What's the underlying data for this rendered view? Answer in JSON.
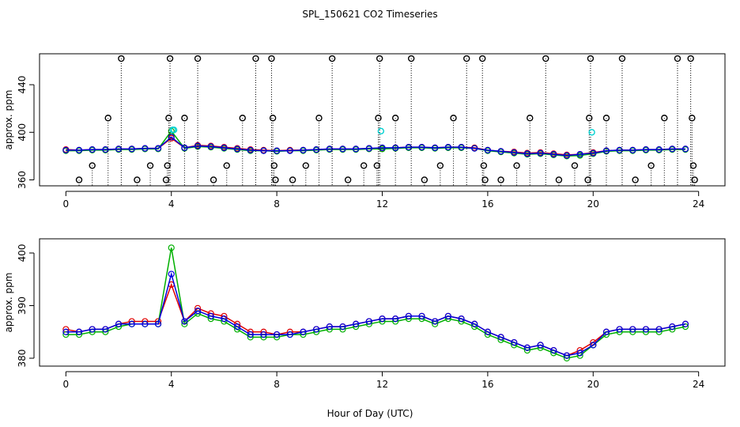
{
  "chart_data": [
    {
      "type": "line",
      "title": "SPL_150621  CO2 Timeseries",
      "ylabel": "approx. ppm",
      "xlim": [
        -1,
        25
      ],
      "xticks": [
        0,
        4,
        8,
        12,
        16,
        20,
        24
      ],
      "ylim": [
        355,
        466
      ],
      "yticks": [
        360,
        400,
        440
      ],
      "x": [
        0,
        0.5,
        1,
        1.5,
        2,
        2.5,
        3,
        3.5,
        4,
        4.5,
        5,
        5.5,
        6,
        6.5,
        7,
        7.5,
        8,
        8.5,
        9,
        9.5,
        10,
        10.5,
        11,
        11.5,
        12,
        12.5,
        13,
        13.5,
        14,
        14.5,
        15,
        15.5,
        16,
        16.5,
        17,
        17.5,
        18,
        18.5,
        19,
        19.5,
        20,
        20.5,
        21,
        21.5,
        22,
        22.5,
        23,
        23.5
      ],
      "series": [
        {
          "style": "line",
          "color": "#e00000",
          "values": [
            385.5,
            385,
            385.5,
            385.5,
            386,
            386,
            386.5,
            386.5,
            395,
            387,
            389,
            388.5,
            387.5,
            386.5,
            385.5,
            385,
            384.5,
            385,
            385,
            385.5,
            386,
            386,
            386,
            386.5,
            386.5,
            387,
            387.5,
            387.5,
            387,
            387.5,
            387.5,
            387,
            385,
            384,
            383.5,
            382.5,
            383,
            382,
            381,
            381.5,
            383,
            384.5,
            385,
            385,
            385.5,
            385.5,
            386,
            386
          ]
        },
        {
          "style": "line",
          "color": "#00b000",
          "values": [
            384.5,
            384.5,
            385,
            385,
            385.5,
            385.5,
            386,
            386,
            401,
            386.5,
            388,
            387.5,
            386.5,
            385.5,
            384.5,
            384.5,
            384,
            384.5,
            384.5,
            385,
            385.5,
            385.5,
            385.5,
            386,
            386,
            386.5,
            387,
            387,
            386.5,
            387,
            387,
            386.5,
            384.5,
            383.5,
            382.5,
            381.5,
            382,
            381,
            380,
            380.5,
            382,
            384,
            384.5,
            384.5,
            385,
            385,
            385.5,
            385.5
          ]
        },
        {
          "style": "line",
          "color": "#0000e0",
          "values": [
            385,
            385,
            385.5,
            385.5,
            386,
            386,
            386.5,
            386.5,
            396,
            387,
            388.5,
            388,
            387,
            386,
            385,
            384.5,
            384.5,
            384.5,
            385,
            385.5,
            386,
            386,
            386,
            386.5,
            387,
            387,
            387.5,
            387.5,
            387,
            387.5,
            387.5,
            386.5,
            385,
            384,
            383,
            382,
            382.5,
            381.5,
            380.5,
            381.5,
            382.5,
            384.5,
            385,
            385,
            385.5,
            385.5,
            386,
            386
          ]
        },
        {
          "style": "spike",
          "color": "#000000",
          "x": [
            0.5,
            1,
            1.6,
            2.1,
            2.7,
            3.2,
            3.8,
            3.85,
            3.9,
            3.95,
            4.5,
            5,
            5.6,
            6.1,
            6.7,
            7.2,
            7.8,
            7.85,
            7.9,
            7.95,
            8.6,
            9.1,
            9.6,
            10.1,
            10.7,
            11.3,
            11.8,
            11.85,
            11.9,
            12.5,
            13.1,
            13.6,
            14.2,
            14.7,
            15.2,
            15.8,
            15.85,
            15.9,
            16.5,
            17.1,
            17.6,
            18.2,
            18.7,
            19.3,
            19.8,
            19.85,
            19.9,
            20.5,
            21.1,
            21.6,
            22.2,
            22.7,
            23.2,
            23.7,
            23.75,
            23.8,
            23.85
          ],
          "values": [
            360,
            372,
            412,
            462,
            360,
            372,
            360,
            372,
            412,
            462,
            412,
            462,
            360,
            372,
            412,
            462,
            462,
            412,
            372,
            360,
            360,
            372,
            412,
            462,
            360,
            372,
            372,
            412,
            462,
            412,
            462,
            360,
            372,
            412,
            462,
            462,
            372,
            360,
            360,
            372,
            412,
            462,
            360,
            372,
            360,
            412,
            462,
            412,
            462,
            360,
            372,
            412,
            462,
            462,
            412,
            372,
            360
          ]
        },
        {
          "style": "point",
          "color": "#00d0d0",
          "x": [
            4.05,
            4.1,
            11.95,
            19.95
          ],
          "values": [
            402,
            402,
            401,
            400
          ]
        }
      ]
    },
    {
      "type": "line",
      "ylabel": "approx. ppm",
      "xlabel": "Hour of Day (UTC)",
      "xlim": [
        -1,
        25
      ],
      "xticks": [
        0,
        4,
        8,
        12,
        16,
        20,
        24
      ],
      "ylim": [
        378.5,
        402.7
      ],
      "yticks": [
        380,
        390,
        400
      ],
      "x": [
        0,
        0.5,
        1,
        1.5,
        2,
        2.5,
        3,
        3.5,
        4,
        4.5,
        5,
        5.5,
        6,
        6.5,
        7,
        7.5,
        8,
        8.5,
        9,
        9.5,
        10,
        10.5,
        11,
        11.5,
        12,
        12.5,
        13,
        13.5,
        14,
        14.5,
        15,
        15.5,
        16,
        16.5,
        17,
        17.5,
        18,
        18.5,
        19,
        19.5,
        20,
        20.5,
        21,
        21.5,
        22,
        22.5,
        23,
        23.5
      ],
      "series": [
        {
          "style": "line",
          "color": "#e00000",
          "values": [
            385.5,
            385,
            385.5,
            385.5,
            386.5,
            387,
            387,
            387,
            394,
            387,
            389.5,
            388.5,
            388,
            386.5,
            385,
            385,
            384.5,
            385,
            385,
            385.5,
            386,
            386,
            386.5,
            387,
            387.5,
            387.5,
            388,
            388,
            387,
            388,
            387.5,
            386.5,
            385,
            384,
            383,
            382,
            382.5,
            381.5,
            380.5,
            381.5,
            383,
            385,
            385.5,
            385.5,
            385.5,
            385.5,
            386,
            386.5
          ]
        },
        {
          "style": "line",
          "color": "#00b000",
          "values": [
            384.5,
            384.5,
            385,
            385,
            386,
            386.5,
            386.5,
            386.5,
            401,
            386.5,
            388.5,
            387.5,
            387,
            385.5,
            384,
            384,
            384,
            384.5,
            384.5,
            385,
            385.5,
            385.5,
            386,
            386.5,
            387,
            387,
            387.5,
            387.5,
            386.5,
            387.5,
            387,
            386,
            384.5,
            383.5,
            382.5,
            381.5,
            382,
            381,
            380,
            380.5,
            382.5,
            384.5,
            385,
            385,
            385,
            385,
            385.5,
            386
          ]
        },
        {
          "style": "line",
          "color": "#0000e0",
          "values": [
            385,
            385,
            385.5,
            385.5,
            386.5,
            386.5,
            386.5,
            386.5,
            396,
            387,
            389,
            388,
            387.5,
            386,
            384.5,
            384.5,
            384.5,
            384.5,
            385,
            385.5,
            386,
            386,
            386.5,
            387,
            387.5,
            387.5,
            388,
            388,
            387,
            388,
            387.5,
            386.5,
            385,
            384,
            383,
            382,
            382.5,
            381.5,
            380.5,
            381,
            382.5,
            385,
            385.5,
            385.5,
            385.5,
            385.5,
            386,
            386.5
          ]
        }
      ]
    }
  ]
}
